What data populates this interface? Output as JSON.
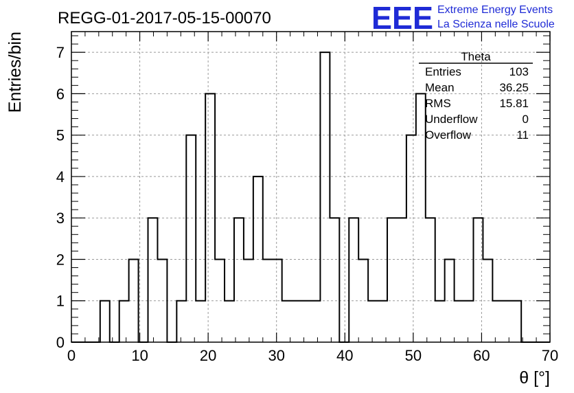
{
  "header": {
    "run_title": "REGG-01-2017-05-15-00070",
    "logo_text": "EEE",
    "logo_line1": "Extreme Energy Events",
    "logo_line2": "La Scienza nelle Scuole"
  },
  "stats_box": {
    "title": "Theta",
    "rows": [
      {
        "label": "Entries",
        "value": "103"
      },
      {
        "label": "Mean",
        "value": "36.25"
      },
      {
        "label": "RMS",
        "value": "15.81"
      },
      {
        "label": "Underflow",
        "value": "0"
      },
      {
        "label": "Overflow",
        "value": "11"
      }
    ]
  },
  "chart_data": {
    "type": "bar",
    "histogram": true,
    "xlabel": "θ [°]",
    "ylabel": "Entries/bin",
    "xlim": [
      0,
      70
    ],
    "ylim": [
      0,
      7.5
    ],
    "grid": true,
    "bin_width": 1.4,
    "bin_start": 0,
    "values": [
      0,
      0,
      0,
      1,
      0,
      1,
      2,
      0,
      3,
      2,
      0,
      1,
      5,
      1,
      6,
      2,
      1,
      3,
      2,
      4,
      2,
      2,
      1,
      1,
      1,
      1,
      7,
      3,
      0,
      3,
      2,
      1,
      1,
      3,
      3,
      5,
      6,
      3,
      1,
      2,
      1,
      1,
      3,
      2,
      1,
      1,
      1,
      0,
      0,
      0
    ],
    "x_ticks": [
      "0",
      "10",
      "20",
      "30",
      "40",
      "50",
      "60",
      "70"
    ],
    "y_ticks": [
      "0",
      "1",
      "2",
      "3",
      "4",
      "5",
      "6",
      "7"
    ]
  }
}
